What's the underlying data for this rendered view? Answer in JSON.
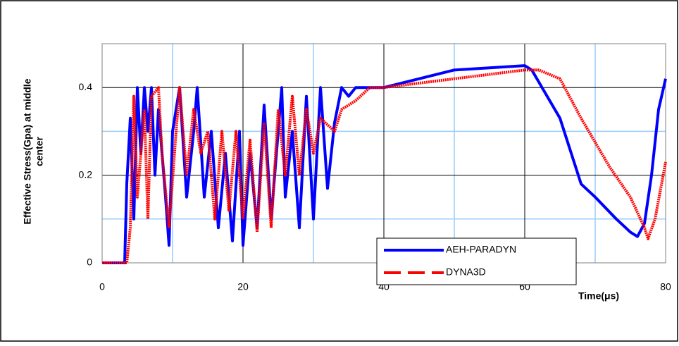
{
  "chart_data": {
    "type": "line",
    "ylabel_lines": [
      "Effective Stress(Gpa) at middle",
      "center"
    ],
    "xlabel": "Time(μs)",
    "xlim": [
      0,
      80
    ],
    "xticks": [
      0,
      20,
      40,
      60,
      80
    ],
    "minor_xticks": [
      10,
      30,
      50,
      70
    ],
    "ylim": [
      0,
      0.5
    ],
    "yticks": [
      0,
      0.2,
      0.4
    ],
    "minor_yticks": [
      0.1,
      0.3
    ],
    "grid": true,
    "legend": "lower right",
    "series": [
      {
        "name": "AEH-PARADYN",
        "color": "#0000ff",
        "dashed": false,
        "x": [
          0,
          3.2,
          3.5,
          4,
          4.5,
          5,
          5.5,
          6,
          6.5,
          7,
          7.5,
          8,
          9,
          9.5,
          10,
          11,
          12,
          13,
          13.5,
          14.5,
          15.5,
          16.5,
          17.5,
          18.5,
          19.5,
          20,
          21,
          22,
          23,
          24,
          25,
          25.5,
          26,
          27,
          28,
          29,
          30,
          31,
          32,
          33,
          34,
          35,
          36,
          40,
          50,
          60,
          61,
          65,
          68,
          70,
          73,
          75,
          76,
          77,
          78,
          79,
          80
        ],
        "values": [
          0,
          0,
          0.18,
          0.33,
          0.1,
          0.4,
          0.25,
          0.4,
          0.3,
          0.4,
          0.2,
          0.35,
          0.15,
          0.04,
          0.3,
          0.4,
          0.15,
          0.3,
          0.4,
          0.15,
          0.3,
          0.08,
          0.25,
          0.05,
          0.3,
          0.04,
          0.25,
          0.08,
          0.36,
          0.1,
          0.3,
          0.4,
          0.15,
          0.3,
          0.08,
          0.38,
          0.1,
          0.4,
          0.17,
          0.32,
          0.4,
          0.38,
          0.4,
          0.4,
          0.44,
          0.45,
          0.44,
          0.33,
          0.18,
          0.15,
          0.1,
          0.07,
          0.06,
          0.09,
          0.2,
          0.35,
          0.42
        ]
      },
      {
        "name": "DYNA3D",
        "color": "#ff0000",
        "dashed": true,
        "x": [
          0,
          3.5,
          4,
          4.5,
          5,
          5.5,
          6,
          6.5,
          7,
          8,
          8.5,
          9.5,
          10.5,
          11,
          12,
          13,
          14,
          15,
          16,
          17,
          18,
          19,
          20,
          21,
          22,
          23,
          24,
          25,
          26,
          27,
          28,
          29,
          30,
          31,
          33,
          34,
          36,
          38,
          40,
          50,
          60,
          62,
          65,
          68,
          72,
          75,
          77,
          77.5,
          78.5,
          80
        ],
        "values": [
          0,
          0,
          0.08,
          0.38,
          0.15,
          0.25,
          0.35,
          0.1,
          0.38,
          0.4,
          0.25,
          0.08,
          0.3,
          0.4,
          0.2,
          0.35,
          0.25,
          0.3,
          0.1,
          0.3,
          0.12,
          0.3,
          0.1,
          0.28,
          0.07,
          0.32,
          0.08,
          0.35,
          0.2,
          0.38,
          0.2,
          0.35,
          0.25,
          0.33,
          0.3,
          0.35,
          0.37,
          0.4,
          0.4,
          0.42,
          0.44,
          0.44,
          0.42,
          0.33,
          0.22,
          0.15,
          0.08,
          0.055,
          0.1,
          0.23
        ]
      }
    ]
  }
}
